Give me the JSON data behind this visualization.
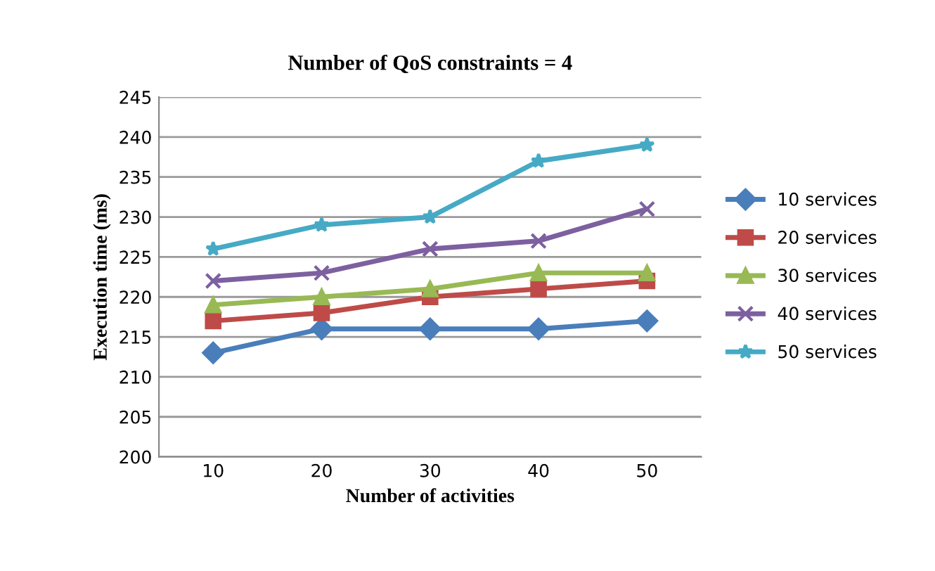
{
  "chart_data": {
    "type": "line",
    "title": "Number of QoS constraints = 4",
    "xlabel": "Number of activities",
    "ylabel": "Execution time (ms)",
    "categories": [
      "10",
      "20",
      "30",
      "40",
      "50"
    ],
    "series": [
      {
        "name": "10 services",
        "color": "#4a7ebb",
        "marker": "diamond",
        "values": [
          213,
          216,
          216,
          216,
          217
        ]
      },
      {
        "name": "20 services",
        "color": "#be4b48",
        "marker": "square",
        "values": [
          217,
          218,
          220,
          221,
          222
        ]
      },
      {
        "name": "30 services",
        "color": "#98b954",
        "marker": "triangle",
        "values": [
          219,
          220,
          221,
          223,
          223
        ]
      },
      {
        "name": "40 services",
        "color": "#7d60a0",
        "marker": "cross",
        "values": [
          222,
          223,
          226,
          227,
          231
        ]
      },
      {
        "name": "50 services",
        "color": "#46aac5",
        "marker": "star",
        "values": [
          226,
          229,
          230,
          237,
          239
        ]
      }
    ],
    "ylim": [
      200,
      245
    ],
    "yticks": [
      200,
      205,
      210,
      215,
      220,
      225,
      230,
      235,
      240,
      245
    ],
    "grid": "y",
    "legend": "right"
  }
}
